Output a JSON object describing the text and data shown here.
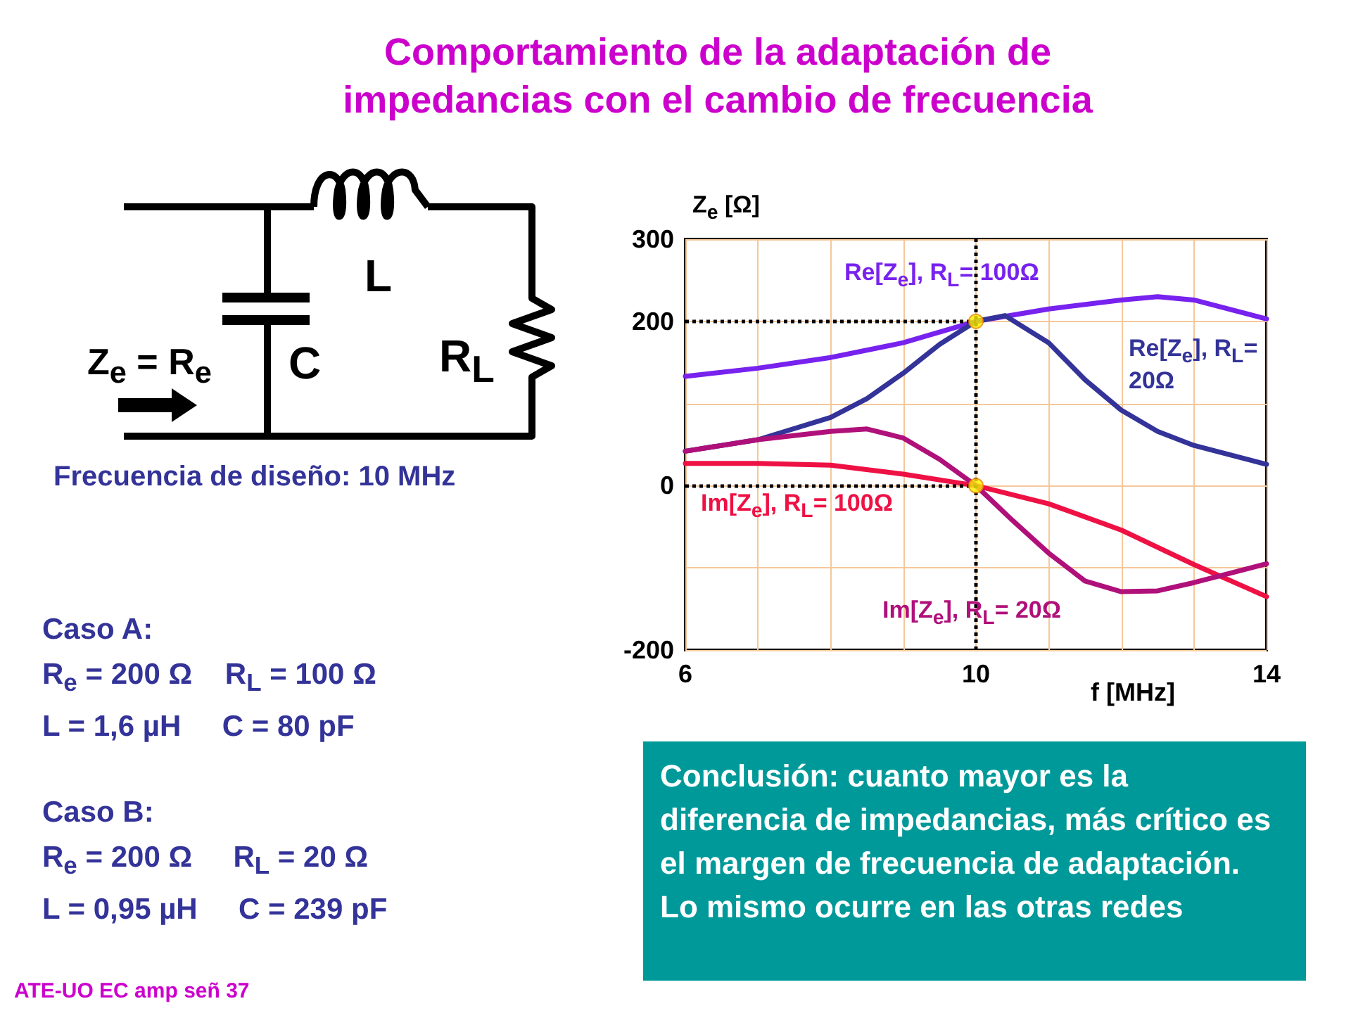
{
  "chart_data": {
    "type": "line",
    "title": "Comportamiento de la adaptación de\nimpedancias con el cambio de frecuencia",
    "xlabel": "f [MHz]",
    "ylabel": "Z$_{e}$ [Ω]",
    "xlim": [
      6,
      14
    ],
    "xticks": [
      6,
      {
        "value": 7,
        "label": null
      },
      {
        "value": 8,
        "label": null
      },
      {
        "value": 9,
        "label": null
      },
      10,
      {
        "value": 11,
        "label": null
      },
      {
        "value": 12,
        "label": null
      },
      {
        "value": 13,
        "label": null
      },
      14
    ],
    "ylim": [
      -200,
      300
    ],
    "yticks": [
      -200,
      {
        "value": -100,
        "label": null
      },
      0,
      {
        "value": 100,
        "label": null
      },
      200,
      300
    ],
    "grid": true,
    "legend": false,
    "marker": "none",
    "line_style": "solid",
    "series": [
      {
        "name": "Re[Z$_{e}$], R$_{L}$= 100Ω",
        "color": "#7722ee",
        "x": [
          6,
          7,
          8,
          9,
          10,
          11,
          12,
          12.5,
          13,
          14
        ],
        "values": [
          133,
          143,
          156,
          174,
          200,
          215,
          226,
          230,
          226,
          203
        ]
      },
      {
        "name": "Re[Z$_{e}$], R$_{L}$= 20Ω",
        "color": "#333399",
        "x": [
          6,
          7,
          8,
          8.5,
          9,
          9.5,
          10,
          10.4,
          11,
          11.5,
          12,
          12.5,
          13,
          14
        ],
        "values": [
          42,
          56,
          83,
          106,
          137,
          172,
          200,
          207,
          174,
          129,
          92,
          66,
          49,
          26
        ]
      },
      {
        "name": "Im[Z$_{e}$], R$_{L}$= 100Ω",
        "color": "#ee1144",
        "x": [
          6,
          7,
          8,
          9,
          10,
          11,
          12,
          13,
          14
        ],
        "values": [
          27,
          27,
          25,
          14,
          0,
          -22,
          -54,
          -96,
          -135
        ]
      },
      {
        "name": "Im[Z$_{e}$], R$_{L}$= 20Ω",
        "color": "#b0107a",
        "x": [
          6,
          7,
          8,
          8.5,
          9,
          9.5,
          10,
          10.5,
          11,
          11.5,
          12,
          12.5,
          13,
          14
        ],
        "values": [
          42,
          56,
          66,
          69,
          58,
          32,
          0,
          -42,
          -82,
          -116,
          -129,
          -128,
          -118,
          -95
        ]
      },
      {
        "type": "scatter",
        "marker": "circle",
        "color": "#ffee00",
        "x": [
          10,
          10
        ],
        "values": [
          200,
          0
        ]
      }
    ],
    "ref_lines": [
      {
        "axis": "y",
        "value": 200,
        "line_style": "dotted",
        "color": "#000000"
      },
      {
        "axis": "y",
        "value": 0,
        "line_style": "dotted",
        "color": "#000000"
      },
      {
        "axis": "x",
        "value": 10,
        "line_style": "dotted",
        "color": "#000000"
      }
    ],
    "annotations": [
      "Z$_{e}$ = R$_{e}$",
      "L",
      "C",
      "R$_{L}$",
      "Frecuencia de diseño: 10 MHz",
      "Caso A:\nR$_{e}$ = 200 Ω    R$_{L}$ = 100 Ω\nL = 1,6 µH     C = 80 pF",
      "Caso B:\nR$_{e}$ = 200 Ω     R$_{L}$ = 20 Ω\nL = 0,95 µH     C = 239 pF",
      "Conclusión: cuanto mayor es la diferencia de impedancias, más crítico es el margen de frecuencia de adaptación. Lo mismo ocurre en las otras redes",
      "ATE-UO EC amp señ 37"
    ]
  }
}
